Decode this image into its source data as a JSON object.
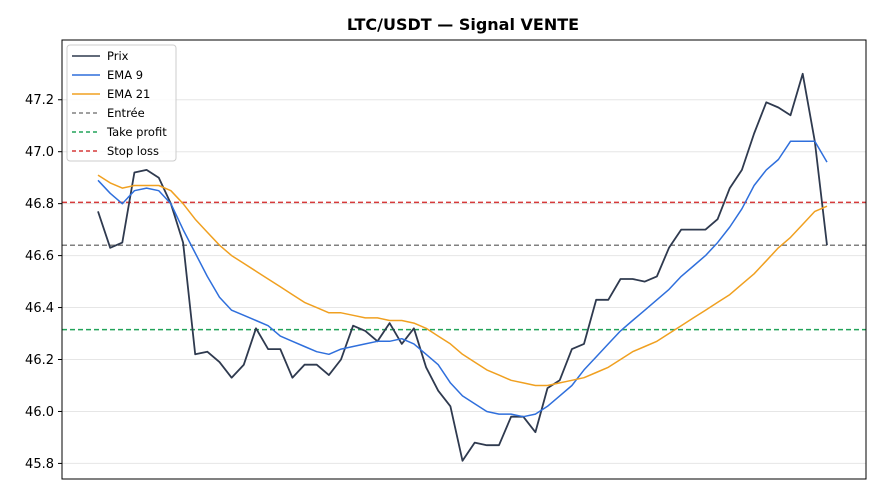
{
  "chart_data": {
    "type": "line",
    "title": "LTC/USDT — Signal VENTE",
    "xlabel": "",
    "ylabel": "",
    "ylim": [
      45.74,
      47.43
    ],
    "yticks": [
      "45.8",
      "46.0",
      "46.2",
      "46.4",
      "46.6",
      "46.8",
      "47.0",
      "47.2"
    ],
    "grid": "horizontal",
    "legend_position": "top-left",
    "x": [
      0,
      1,
      2,
      3,
      4,
      5,
      6,
      7,
      8,
      9,
      10,
      11,
      12,
      13,
      14,
      15,
      16,
      17,
      18,
      19,
      20,
      21,
      22,
      23,
      24,
      25,
      26,
      27,
      28,
      29,
      30,
      31,
      32,
      33,
      34,
      35,
      36,
      37,
      38,
      39,
      40,
      41,
      42,
      43,
      44,
      45,
      46,
      47,
      48,
      49,
      50,
      51,
      52,
      53,
      54,
      55,
      56,
      57,
      58,
      59,
      60
    ],
    "series": [
      {
        "name": "Prix",
        "color": "#2f3a4f",
        "style": "solid",
        "values": [
          46.77,
          46.63,
          46.65,
          46.92,
          46.93,
          46.9,
          46.8,
          46.65,
          46.22,
          46.23,
          46.19,
          46.13,
          46.18,
          46.32,
          46.24,
          46.24,
          46.13,
          46.18,
          46.18,
          46.14,
          46.2,
          46.33,
          46.31,
          46.27,
          46.34,
          46.26,
          46.32,
          46.17,
          46.08,
          46.02,
          45.81,
          45.88,
          45.87,
          45.87,
          45.98,
          45.98,
          45.92,
          46.09,
          46.12,
          46.24,
          46.26,
          46.43,
          46.43,
          46.51,
          46.51,
          46.5,
          46.52,
          46.63,
          46.7,
          46.7,
          46.7,
          46.74,
          46.86,
          46.93,
          47.07,
          47.19,
          47.17,
          47.14,
          47.3,
          47.04,
          46.64
        ]
      },
      {
        "name": "EMA 9",
        "color": "#2f6fdc",
        "style": "solid",
        "values": [
          46.89,
          46.84,
          46.8,
          46.85,
          46.86,
          46.85,
          46.8,
          46.7,
          46.61,
          46.52,
          46.44,
          46.39,
          46.37,
          46.35,
          46.33,
          46.29,
          46.27,
          46.25,
          46.23,
          46.22,
          46.24,
          46.25,
          46.26,
          46.27,
          46.27,
          46.28,
          46.26,
          46.22,
          46.18,
          46.11,
          46.06,
          46.03,
          46.0,
          45.99,
          45.99,
          45.98,
          45.99,
          46.02,
          46.06,
          46.1,
          46.16,
          46.21,
          46.26,
          46.31,
          46.35,
          46.39,
          46.43,
          46.47,
          46.52,
          46.56,
          46.6,
          46.65,
          46.71,
          46.78,
          46.87,
          46.93,
          46.97,
          47.04,
          47.04,
          47.04,
          46.96
        ]
      },
      {
        "name": "EMA 21",
        "color": "#f0a020",
        "style": "solid",
        "values": [
          46.91,
          46.88,
          46.86,
          46.87,
          46.87,
          46.87,
          46.85,
          46.8,
          46.74,
          46.69,
          46.64,
          46.6,
          46.57,
          46.54,
          46.51,
          46.48,
          46.45,
          46.42,
          46.4,
          46.38,
          46.38,
          46.37,
          46.36,
          46.36,
          46.35,
          46.35,
          46.34,
          46.32,
          46.29,
          46.26,
          46.22,
          46.19,
          46.16,
          46.14,
          46.12,
          46.11,
          46.1,
          46.1,
          46.11,
          46.12,
          46.13,
          46.15,
          46.17,
          46.2,
          46.23,
          46.25,
          46.27,
          46.3,
          46.33,
          46.36,
          46.39,
          46.42,
          46.45,
          46.49,
          46.53,
          46.58,
          46.63,
          46.67,
          46.72,
          46.77,
          46.79
        ]
      },
      {
        "name": "Entrée",
        "color": "#808080",
        "style": "dashed",
        "level": 46.64
      },
      {
        "name": "Take profit",
        "color": "#22a35a",
        "style": "dashed",
        "level": 46.315
      },
      {
        "name": "Stop loss",
        "color": "#d63a3a",
        "style": "dashed",
        "level": 46.805
      }
    ]
  }
}
